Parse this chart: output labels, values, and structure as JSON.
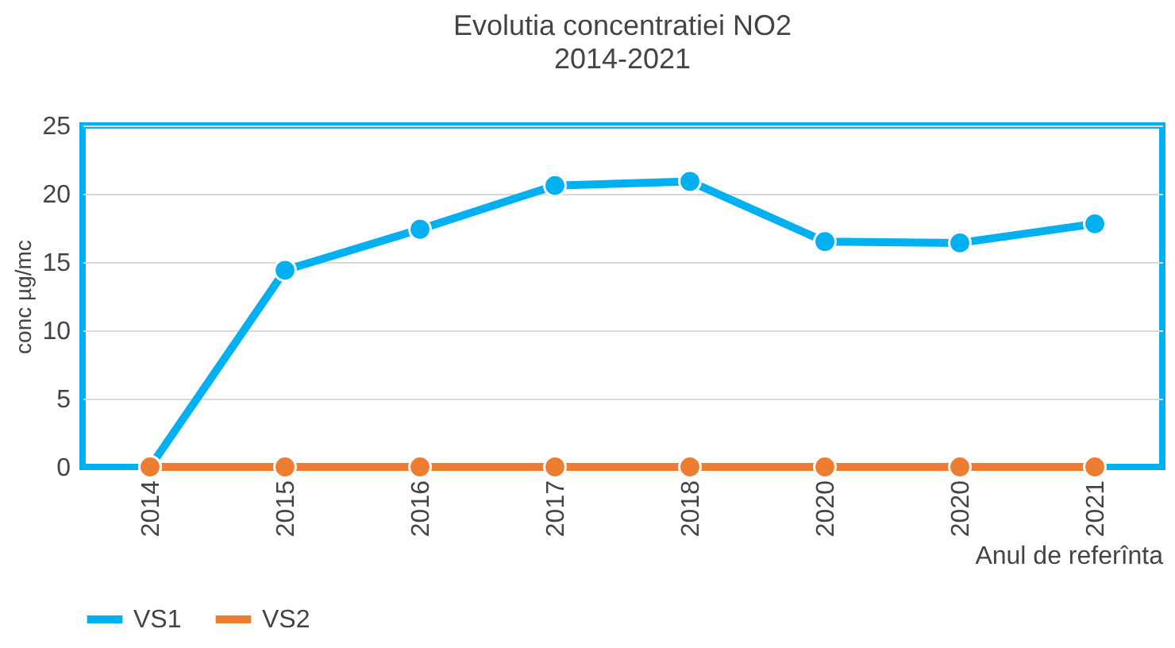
{
  "chart_data": {
    "type": "line",
    "title": "Evolutia concentratiei NO2",
    "subtitle": "2014-2021",
    "xlabel": "Anul de referînta",
    "ylabel": "conc µg/mc",
    "categories": [
      "2014",
      "2015",
      "2016",
      "2017",
      "2018",
      "2020",
      "2020",
      "2021"
    ],
    "series": [
      {
        "name": "VS1",
        "color": "#00b0f0",
        "values": [
          0,
          14.4,
          17.4,
          20.6,
          20.9,
          16.5,
          16.4,
          17.8
        ]
      },
      {
        "name": "VS2",
        "color": "#ed7d31",
        "values": [
          0,
          0,
          0,
          0,
          0,
          0,
          0,
          0
        ]
      }
    ],
    "ylim": [
      0,
      25
    ],
    "yticks": [
      0,
      5,
      10,
      15,
      20,
      25
    ],
    "grid": "y",
    "legend": "bottom",
    "marker": "circle",
    "line_style": "solid"
  }
}
